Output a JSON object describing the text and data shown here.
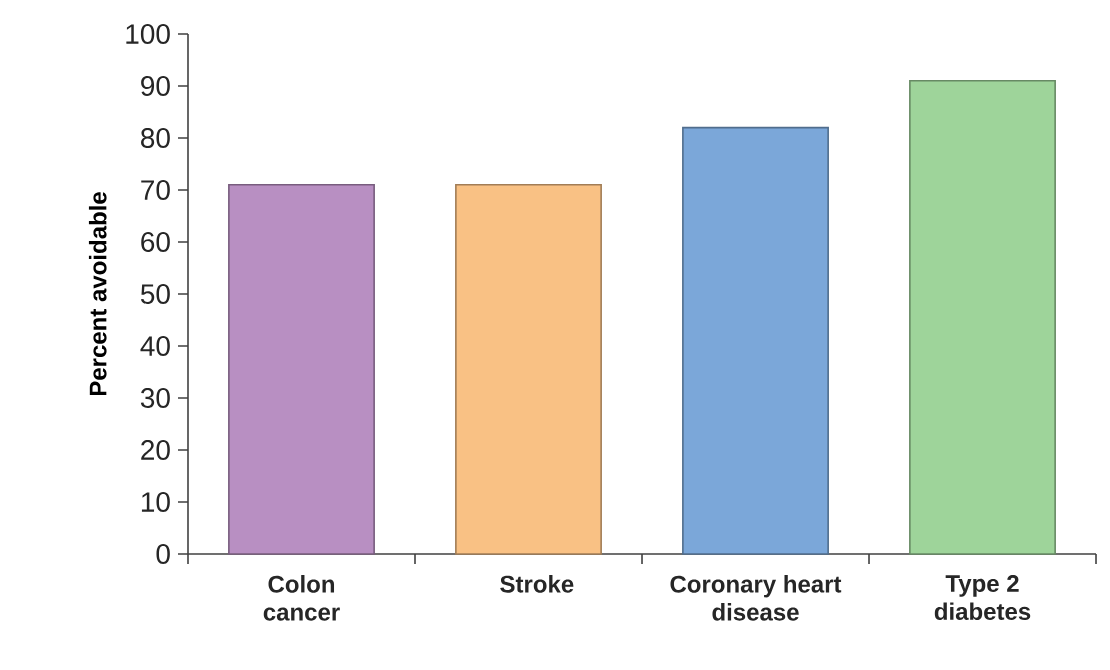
{
  "chart_data": {
    "type": "bar",
    "ylabel": "Percent avoidable",
    "categories": [
      "Colon cancer",
      "Stroke",
      "Coronary heart disease",
      "Type 2 diabetes"
    ],
    "values": [
      71,
      71,
      82,
      91
    ],
    "colors": [
      "#b88fc2",
      "#f9c184",
      "#7ba7d9",
      "#9ed49a"
    ],
    "ylim": [
      0,
      100
    ],
    "yticks": [
      0,
      10,
      20,
      30,
      40,
      50,
      60,
      70,
      80,
      90,
      100
    ],
    "grid": false
  }
}
